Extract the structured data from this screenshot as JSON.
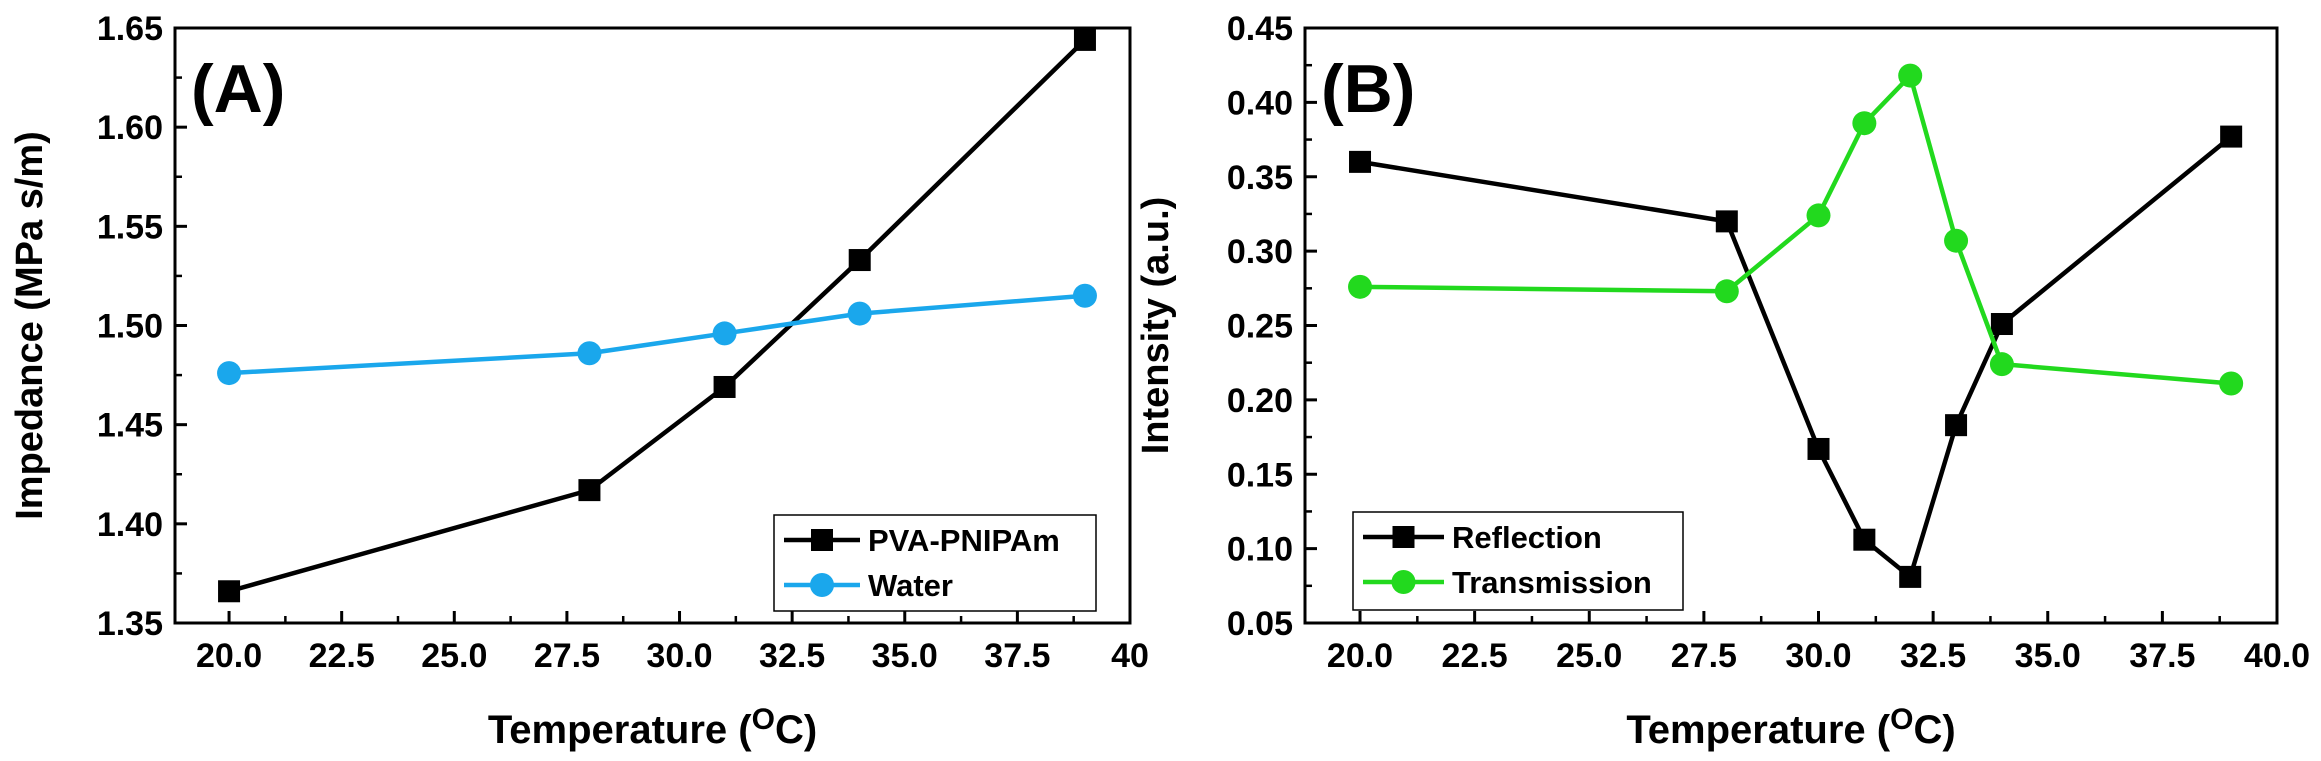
{
  "chart_data": [
    {
      "type": "line",
      "panel_label": "(A)",
      "xlabel": "Temperature (",
      "xlabel_unit_sup": "O",
      "xlabel_unit": "C)",
      "ylabel": "Impedance (MPa s/m)",
      "xlim": [
        18.8,
        40
      ],
      "ylim": [
        1.35,
        1.65
      ],
      "xticks": [
        "20.0",
        "22.5",
        "25.0",
        "27.5",
        "30.0",
        "32.5",
        "35.0",
        "37.5",
        "40"
      ],
      "xtick_values": [
        20,
        22.5,
        25,
        27.5,
        30,
        32.5,
        35,
        37.5,
        40
      ],
      "yticks": [
        "1.35",
        "1.40",
        "1.45",
        "1.50",
        "1.55",
        "1.60",
        "1.65"
      ],
      "ytick_values": [
        1.35,
        1.4,
        1.45,
        1.5,
        1.55,
        1.6,
        1.65
      ],
      "legend_position": "bottom-right",
      "series": [
        {
          "name": "PVA-PNIPAm",
          "marker": "square",
          "color": "#000000",
          "x": [
            20,
            28,
            31,
            34,
            39
          ],
          "y": [
            1.366,
            1.417,
            1.469,
            1.533,
            1.644
          ]
        },
        {
          "name": "Water",
          "marker": "circle",
          "color": "#1aa7ec",
          "x": [
            20,
            28,
            31,
            34,
            39
          ],
          "y": [
            1.476,
            1.486,
            1.496,
            1.506,
            1.515
          ]
        }
      ]
    },
    {
      "type": "line",
      "panel_label": "(B)",
      "xlabel": "Temperature (",
      "xlabel_unit_sup": "O",
      "xlabel_unit": "C)",
      "ylabel": "Intensity (a.u.)",
      "xlim": [
        18.8,
        40
      ],
      "ylim": [
        0.05,
        0.45
      ],
      "xticks": [
        "20.0",
        "22.5",
        "25.0",
        "27.5",
        "30.0",
        "32.5",
        "35.0",
        "37.5",
        "40.0"
      ],
      "xtick_values": [
        20,
        22.5,
        25,
        27.5,
        30,
        32.5,
        35,
        37.5,
        40
      ],
      "yticks": [
        "0.05",
        "0.10",
        "0.15",
        "0.20",
        "0.25",
        "0.30",
        "0.35",
        "0.40",
        "0.45"
      ],
      "ytick_values": [
        0.05,
        0.1,
        0.15,
        0.2,
        0.25,
        0.3,
        0.35,
        0.4,
        0.45
      ],
      "legend_position": "bottom-left",
      "series": [
        {
          "name": "Reflection",
          "marker": "square",
          "color": "#000000",
          "x": [
            20,
            28,
            30,
            31,
            32,
            33,
            34,
            39
          ],
          "y": [
            0.36,
            0.32,
            0.167,
            0.106,
            0.081,
            0.183,
            0.251,
            0.377
          ]
        },
        {
          "name": "Transmission",
          "marker": "circle",
          "color": "#22d91e",
          "x": [
            20,
            28,
            30,
            31,
            32,
            33,
            34,
            39
          ],
          "y": [
            0.276,
            0.273,
            0.324,
            0.386,
            0.418,
            0.307,
            0.224,
            0.211
          ]
        }
      ]
    }
  ]
}
